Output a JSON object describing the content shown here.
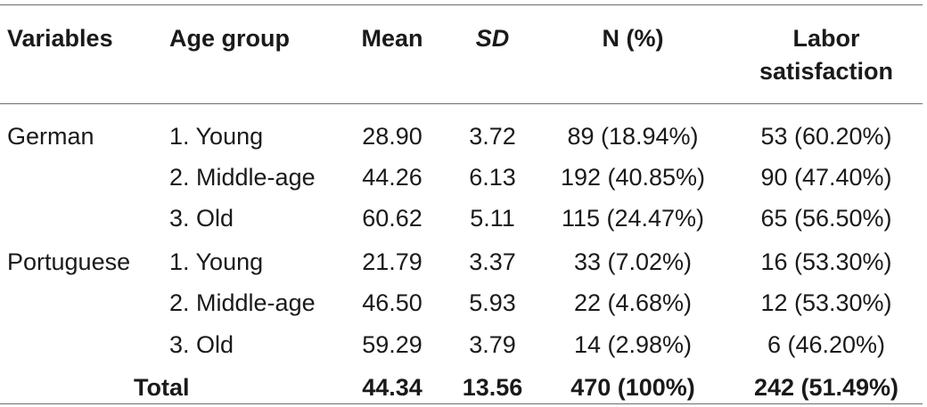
{
  "header": {
    "variables": "Variables",
    "age_group": "Age group",
    "mean": "Mean",
    "sd": "SD",
    "n_pct": "N (%)",
    "labor_line1": "Labor",
    "labor_line2": "satisfaction"
  },
  "rows": [
    {
      "variable": "German",
      "age_group": "1. Young",
      "mean": "28.90",
      "sd": "3.72",
      "n_pct": "89 (18.94%)",
      "labor": "53 (60.20%)"
    },
    {
      "variable": "",
      "age_group": "2. Middle-age",
      "mean": "44.26",
      "sd": "6.13",
      "n_pct": "192 (40.85%)",
      "labor": "90 (47.40%)"
    },
    {
      "variable": "",
      "age_group": "3. Old",
      "mean": "60.62",
      "sd": "5.11",
      "n_pct": "115 (24.47%)",
      "labor": "65 (56.50%)"
    },
    {
      "variable": "Portuguese",
      "age_group": "1. Young",
      "mean": "21.79",
      "sd": "3.37",
      "n_pct": "33 (7.02%)",
      "labor": "16 (53.30%)"
    },
    {
      "variable": "",
      "age_group": "2. Middle-age",
      "mean": "46.50",
      "sd": "5.93",
      "n_pct": "22 (4.68%)",
      "labor": "12 (53.30%)"
    },
    {
      "variable": "",
      "age_group": "3. Old",
      "mean": "59.29",
      "sd": "3.79",
      "n_pct": "14 (2.98%)",
      "labor": "6 (46.20%)"
    }
  ],
  "total": {
    "label": "Total",
    "mean": "44.34",
    "sd": "13.56",
    "n_pct": "470 (100%)",
    "labor": "242 (51.49%)"
  }
}
